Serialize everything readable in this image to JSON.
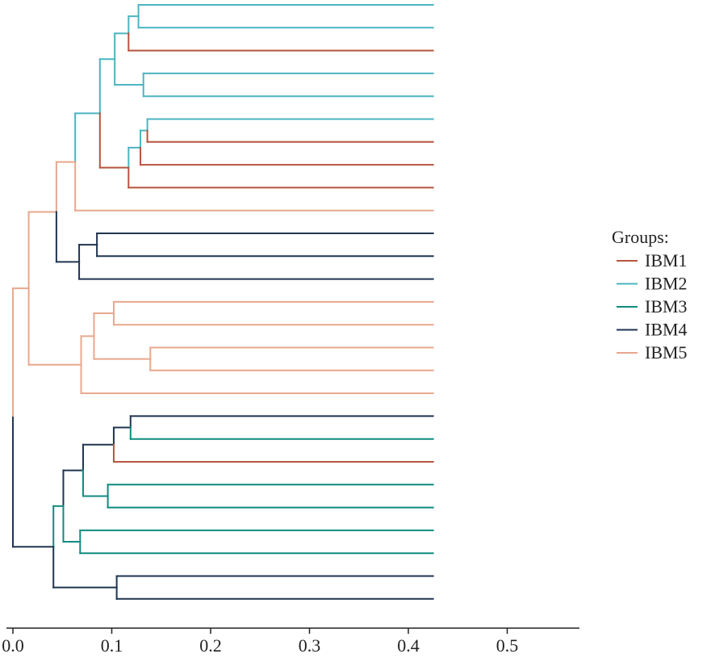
{
  "chart_data": {
    "type": "dendrogram",
    "title": "",
    "xlabel": "",
    "ylabel": "",
    "xlim": [
      0.0,
      0.55
    ],
    "x_ticks": [
      0.0,
      0.1,
      0.2,
      0.3,
      0.4,
      0.5
    ],
    "x_tick_labels": [
      "0.0",
      "0.1",
      "0.2",
      "0.3",
      "0.4",
      "0.5"
    ],
    "leaf_end": 0.425,
    "leaves": 27,
    "legend": {
      "title": "Groups:",
      "placement": "right",
      "items": [
        {
          "label": "IBM1",
          "color": "#b5553e"
        },
        {
          "label": "IBM2",
          "color": "#4bb5c1"
        },
        {
          "label": "IBM3",
          "color": "#0f8b7f"
        },
        {
          "label": "IBM4",
          "color": "#1f3550"
        },
        {
          "label": "IBM5",
          "color": "#e8a88e"
        }
      ]
    },
    "tree": {
      "h": 0.0,
      "g": "IBM5",
      "c": [
        {
          "h": 0.016,
          "g": "IBM5",
          "c": [
            {
              "h": 0.044,
              "g": "IBM5",
              "c": [
                {
                  "h": 0.063,
                  "g": "IBM5",
                  "c": [
                    {
                      "h": 0.088,
                      "g": "IBM2",
                      "c": [
                        {
                          "h": 0.103,
                          "g": "IBM2",
                          "c": [
                            {
                              "h": 0.117,
                              "g": "IBM2",
                              "c": [
                                {
                                  "h": 0.127,
                                  "g": "IBM2",
                                  "c": [
                                    {
                                      "g": "IBM2"
                                    },
                                    {
                                      "g": "IBM2"
                                    }
                                  ]
                                },
                                {
                                  "g": "IBM1"
                                }
                              ]
                            },
                            {
                              "h": 0.132,
                              "g": "IBM2",
                              "c": [
                                {
                                  "g": "IBM2"
                                },
                                {
                                  "g": "IBM2"
                                }
                              ]
                            }
                          ]
                        },
                        {
                          "h": 0.117,
                          "g": "IBM1",
                          "c": [
                            {
                              "h": 0.129,
                              "g": "IBM2",
                              "c": [
                                {
                                  "h": 0.136,
                                  "g": "IBM2",
                                  "c": [
                                    {
                                      "g": "IBM2"
                                    },
                                    {
                                      "g": "IBM1"
                                    }
                                  ]
                                },
                                {
                                  "g": "IBM1"
                                }
                              ]
                            },
                            {
                              "g": "IBM1"
                            }
                          ]
                        }
                      ]
                    },
                    {
                      "g": "IBM5"
                    }
                  ]
                },
                {
                  "h": 0.067,
                  "g": "IBM4",
                  "c": [
                    {
                      "h": 0.085,
                      "g": "IBM4",
                      "c": [
                        {
                          "g": "IBM4"
                        },
                        {
                          "g": "IBM4"
                        }
                      ]
                    },
                    {
                      "g": "IBM4"
                    }
                  ]
                }
              ]
            },
            {
              "h": 0.069,
              "g": "IBM5",
              "c": [
                {
                  "h": 0.082,
                  "g": "IBM5",
                  "c": [
                    {
                      "h": 0.102,
                      "g": "IBM5",
                      "c": [
                        {
                          "g": "IBM5"
                        },
                        {
                          "g": "IBM5"
                        }
                      ]
                    },
                    {
                      "h": 0.139,
                      "g": "IBM5",
                      "c": [
                        {
                          "g": "IBM5"
                        },
                        {
                          "g": "IBM5"
                        }
                      ]
                    }
                  ]
                },
                {
                  "g": "IBM5"
                }
              ]
            }
          ]
        },
        {
          "h": 0.041,
          "g": "IBM4",
          "c": [
            {
              "h": 0.051,
              "g": "IBM3",
              "c": [
                {
                  "h": 0.071,
                  "g": "IBM4",
                  "c": [
                    {
                      "h": 0.102,
                      "g": "IBM4",
                      "c": [
                        {
                          "h": 0.119,
                          "g": "IBM4",
                          "c": [
                            {
                              "g": "IBM4"
                            },
                            {
                              "g": "IBM3"
                            }
                          ]
                        },
                        {
                          "g": "IBM1"
                        }
                      ]
                    },
                    {
                      "h": 0.096,
                      "g": "IBM3",
                      "c": [
                        {
                          "g": "IBM3"
                        },
                        {
                          "g": "IBM3"
                        }
                      ]
                    }
                  ]
                },
                {
                  "h": 0.068,
                  "g": "IBM3",
                  "c": [
                    {
                      "g": "IBM3"
                    },
                    {
                      "g": "IBM3"
                    }
                  ]
                }
              ]
            },
            {
              "h": 0.105,
              "g": "IBM4",
              "c": [
                {
                  "g": "IBM4"
                },
                {
                  "g": "IBM4"
                }
              ]
            }
          ]
        }
      ]
    }
  }
}
